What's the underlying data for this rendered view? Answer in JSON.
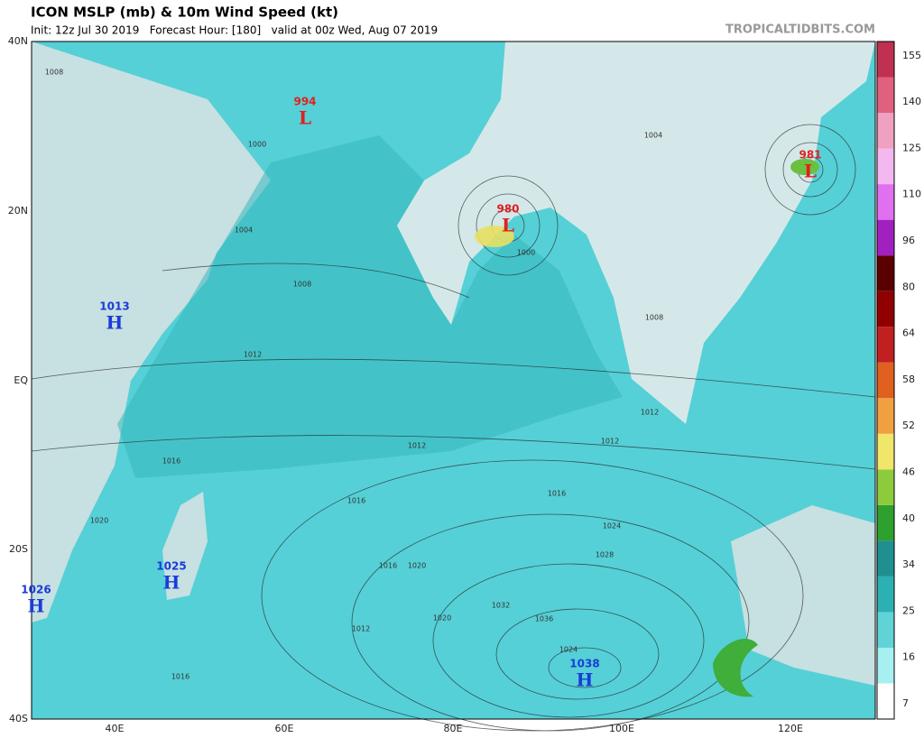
{
  "header": {
    "title": "ICON MSLP (mb) & 10m Wind Speed (kt)",
    "subtitle": "Init: 12z Jul 30 2019   Forecast Hour: [180]   valid at 00z Wed, Aug 07 2019",
    "credit": "TROPICALTIDBITS.COM"
  },
  "axes": {
    "latitudes": [
      "40N",
      "20N",
      "EQ",
      "20S",
      "40S"
    ],
    "longitudes": [
      "40E",
      "60E",
      "80E",
      "100E",
      "120E"
    ]
  },
  "colorbar": {
    "ticks": [
      "7",
      "16",
      "25",
      "34",
      "40",
      "46",
      "52",
      "58",
      "64",
      "80",
      "96",
      "110",
      "125",
      "140",
      "155"
    ],
    "colors": [
      "#ffffff",
      "#a6f0f2",
      "#5fd3d6",
      "#2bb0b3",
      "#1f8f92",
      "#2ea02e",
      "#8ccc3c",
      "#f0e66a",
      "#f0a040",
      "#e06020",
      "#c02020",
      "#900000",
      "#5a0000",
      "#a020c0",
      "#e070f0",
      "#f4b8f0",
      "#f0a0c0",
      "#e06080",
      "#c03050"
    ]
  },
  "pressure_centers": [
    {
      "letter": "L",
      "value": "994"
    },
    {
      "letter": "L",
      "value": "980"
    },
    {
      "letter": "L",
      "value": "981"
    },
    {
      "letter": "H",
      "value": "1013"
    },
    {
      "letter": "H",
      "value": "1025"
    },
    {
      "letter": "H",
      "value": "1026"
    },
    {
      "letter": "H",
      "value": "1038"
    }
  ],
  "isobar_labels": [
    "1008",
    "1004",
    "1000",
    "1008",
    "1012",
    "1012",
    "1012",
    "1016",
    "1016",
    "1016",
    "1020",
    "1020",
    "1024",
    "1028",
    "1032",
    "1036",
    "1024",
    "1020",
    "1016",
    "1012",
    "1016",
    "1008",
    "1004",
    "1000",
    "1012"
  ]
}
